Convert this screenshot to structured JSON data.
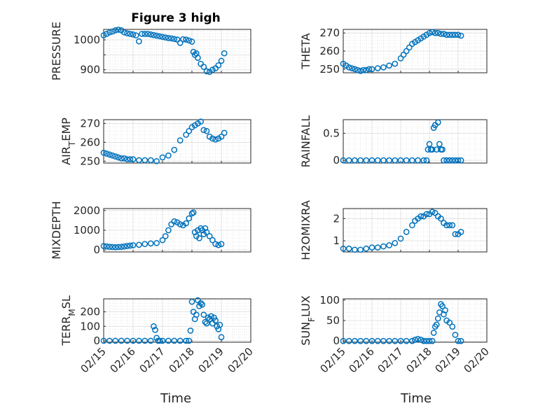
{
  "figure_title": "Figure 3 high",
  "x_ticks": [
    "02/15",
    "02/16",
    "02/17",
    "02/18",
    "02/19",
    "02/20"
  ],
  "marker_color": "#0072BD",
  "chart_data": [
    {
      "type": "scatter",
      "ylabel": "PRESSURE",
      "ylim": [
        890,
        1035
      ],
      "yticks": [
        900,
        950,
        1000
      ],
      "yticklabels": [
        "900",
        "",
        "1000"
      ],
      "x": [
        0,
        0.1,
        0.2,
        0.3,
        0.4,
        0.5,
        0.6,
        0.7,
        0.8,
        0.9,
        1.0,
        1.1,
        1.2,
        1.3,
        1.4,
        1.5,
        1.6,
        1.7,
        1.8,
        1.9,
        2.0,
        2.1,
        2.2,
        2.3,
        2.4,
        2.5,
        2.6,
        2.7,
        2.8,
        2.9,
        3.0,
        3.05,
        3.1,
        3.15,
        3.2,
        3.3,
        3.4,
        3.5,
        3.6,
        3.7,
        3.8,
        3.9,
        4.0,
        4.1
      ],
      "y": [
        1015,
        1020,
        1025,
        1028,
        1032,
        1034,
        1032,
        1025,
        1022,
        1020,
        1018,
        1015,
        995,
        1020,
        1020,
        1020,
        1018,
        1016,
        1014,
        1012,
        1010,
        1008,
        1006,
        1005,
        1003,
        1001,
        990,
        1002,
        1001,
        998,
        994,
        960,
        950,
        955,
        940,
        920,
        910,
        895,
        893,
        900,
        905,
        915,
        930,
        955
      ]
    },
    {
      "type": "scatter",
      "ylabel": "THETA",
      "ylim": [
        248,
        272
      ],
      "yticks": [
        250,
        260,
        270
      ],
      "yticklabels": [
        "250",
        "260",
        "270"
      ],
      "x": [
        0,
        0.1,
        0.2,
        0.3,
        0.4,
        0.5,
        0.6,
        0.7,
        0.8,
        0.9,
        1.0,
        1.2,
        1.4,
        1.6,
        1.8,
        2.0,
        2.1,
        2.2,
        2.3,
        2.4,
        2.5,
        2.6,
        2.7,
        2.8,
        2.9,
        3.0,
        3.1,
        3.2,
        3.3,
        3.4,
        3.5,
        3.6,
        3.7,
        3.8,
        3.9,
        4.0,
        4.1
      ],
      "y": [
        253,
        252,
        251,
        250.5,
        250,
        249.5,
        249,
        249.5,
        249.5,
        250,
        250,
        250.5,
        251,
        252,
        253,
        256,
        258,
        260,
        262,
        264,
        265,
        266,
        267,
        268,
        269,
        270,
        270.5,
        270,
        270,
        269.5,
        269.5,
        269,
        269,
        269,
        269,
        269,
        268.5
      ]
    },
    {
      "type": "scatter",
      "ylabel": "AIR_TEMP",
      "ylim": [
        249,
        272
      ],
      "yticks": [
        250,
        260,
        270
      ],
      "yticklabels": [
        "250",
        "260",
        "270"
      ],
      "x": [
        0,
        0.1,
        0.2,
        0.3,
        0.4,
        0.5,
        0.6,
        0.7,
        0.8,
        0.9,
        1.0,
        1.2,
        1.4,
        1.6,
        1.8,
        2.0,
        2.2,
        2.4,
        2.6,
        2.8,
        2.9,
        3.0,
        3.1,
        3.2,
        3.3,
        3.4,
        3.5,
        3.6,
        3.7,
        3.8,
        3.9,
        4.0,
        4.1
      ],
      "y": [
        254.5,
        254,
        253.5,
        253,
        252.5,
        252,
        251.5,
        251.5,
        251,
        251,
        251,
        250.5,
        250.5,
        250.5,
        250,
        252,
        253,
        256,
        261,
        264,
        266,
        268,
        269,
        270,
        271,
        266.5,
        266,
        263,
        262,
        261.5,
        262,
        263,
        265
      ]
    },
    {
      "type": "scatter",
      "ylabel": "RAINFALL",
      "ylim": [
        -0.05,
        0.75
      ],
      "yticks": [
        0,
        0.5
      ],
      "yticklabels": [
        "0",
        "0.5"
      ],
      "x": [
        0,
        0.2,
        0.4,
        0.6,
        0.8,
        1.0,
        1.2,
        1.4,
        1.6,
        1.8,
        2.0,
        2.2,
        2.4,
        2.6,
        2.8,
        2.9,
        2.95,
        3.0,
        3.05,
        3.1,
        3.15,
        3.2,
        3.25,
        3.3,
        3.35,
        3.4,
        3.45,
        3.5,
        3.6,
        3.7,
        3.8,
        3.9,
        4.0,
        4.1
      ],
      "y": [
        0,
        0,
        0,
        0,
        0,
        0,
        0,
        0,
        0,
        0,
        0,
        0,
        0,
        0,
        0,
        0,
        0.2,
        0.3,
        0.2,
        0.2,
        0.6,
        0.65,
        0.2,
        0.7,
        0.3,
        0.2,
        0.2,
        0,
        0,
        0,
        0,
        0,
        0,
        0
      ]
    },
    {
      "type": "scatter",
      "ylabel": "MIXDEPTH",
      "ylim": [
        -100,
        2100
      ],
      "yticks": [
        0,
        1000,
        2000
      ],
      "yticklabels": [
        "0",
        "1000",
        "2000"
      ],
      "x": [
        0,
        0.1,
        0.2,
        0.3,
        0.4,
        0.5,
        0.6,
        0.7,
        0.8,
        0.9,
        1.0,
        1.2,
        1.4,
        1.6,
        1.8,
        2.0,
        2.1,
        2.2,
        2.3,
        2.4,
        2.5,
        2.6,
        2.7,
        2.8,
        2.9,
        3.0,
        3.05,
        3.1,
        3.15,
        3.2,
        3.25,
        3.3,
        3.35,
        3.4,
        3.45,
        3.5,
        3.6,
        3.7,
        3.8,
        3.9,
        4.0
      ],
      "y": [
        200,
        180,
        160,
        150,
        140,
        150,
        160,
        180,
        200,
        220,
        240,
        260,
        300,
        330,
        350,
        500,
        700,
        1000,
        1300,
        1450,
        1400,
        1300,
        1250,
        1350,
        1600,
        1850,
        1900,
        900,
        700,
        1000,
        600,
        1100,
        1000,
        800,
        1100,
        900,
        700,
        500,
        300,
        250,
        300
      ]
    },
    {
      "type": "scatter",
      "ylabel": "H2OMIXRA",
      "ylim": [
        0.5,
        2.45
      ],
      "yticks": [
        1,
        2
      ],
      "yticklabels": [
        "1",
        "2"
      ],
      "x": [
        0,
        0.2,
        0.4,
        0.6,
        0.8,
        1.0,
        1.2,
        1.4,
        1.6,
        1.8,
        2.0,
        2.2,
        2.4,
        2.5,
        2.6,
        2.7,
        2.8,
        2.9,
        3.0,
        3.1,
        3.2,
        3.3,
        3.4,
        3.5,
        3.6,
        3.7,
        3.8,
        3.9,
        4.0,
        4.1
      ],
      "y": [
        0.65,
        0.65,
        0.6,
        0.6,
        0.65,
        0.7,
        0.7,
        0.75,
        0.8,
        0.9,
        1.1,
        1.4,
        1.7,
        1.9,
        2.0,
        2.1,
        2.1,
        2.2,
        2.2,
        2.3,
        2.25,
        2.1,
        2.0,
        1.8,
        1.7,
        1.7,
        1.7,
        1.3,
        1.3,
        1.4
      ]
    },
    {
      "type": "scatter",
      "ylabel": "TERR_MSL",
      "ylim": [
        -10,
        290
      ],
      "yticks": [
        0,
        100,
        200
      ],
      "yticklabels": [
        "0",
        "100",
        "200"
      ],
      "x": [
        0,
        0.2,
        0.4,
        0.6,
        0.8,
        1.0,
        1.2,
        1.4,
        1.6,
        1.7,
        1.75,
        1.8,
        1.85,
        1.9,
        2.0,
        2.2,
        2.4,
        2.6,
        2.8,
        2.9,
        2.95,
        3.0,
        3.05,
        3.1,
        3.15,
        3.2,
        3.25,
        3.3,
        3.35,
        3.4,
        3.45,
        3.5,
        3.55,
        3.6,
        3.65,
        3.7,
        3.75,
        3.8,
        3.85,
        3.9,
        3.95,
        4.0
      ],
      "y": [
        0,
        0,
        0,
        0,
        0,
        0,
        0,
        0,
        0,
        100,
        75,
        20,
        0,
        0,
        0,
        0,
        0,
        0,
        0,
        0,
        70,
        270,
        200,
        150,
        180,
        280,
        240,
        260,
        250,
        180,
        130,
        120,
        160,
        150,
        170,
        120,
        160,
        140,
        100,
        80,
        110,
        25
      ]
    },
    {
      "type": "scatter",
      "ylabel": "SUN_FLUX",
      "ylim": [
        -3,
        103
      ],
      "yticks": [
        0,
        50,
        100
      ],
      "yticklabels": [
        "0",
        "50",
        "100"
      ],
      "x": [
        0,
        0.2,
        0.4,
        0.6,
        0.8,
        1.0,
        1.2,
        1.4,
        1.6,
        1.8,
        2.0,
        2.2,
        2.4,
        2.5,
        2.6,
        2.7,
        2.8,
        2.9,
        3.0,
        3.1,
        3.15,
        3.2,
        3.25,
        3.3,
        3.35,
        3.4,
        3.45,
        3.5,
        3.55,
        3.6,
        3.7,
        3.8,
        3.9,
        4.0,
        4.1
      ],
      "y": [
        0,
        0,
        0,
        0,
        0,
        0,
        0,
        0,
        0,
        0,
        0,
        0,
        0,
        3,
        5,
        3,
        0,
        0,
        0,
        0,
        20,
        35,
        40,
        55,
        70,
        90,
        85,
        65,
        75,
        50,
        45,
        35,
        15,
        0,
        0
      ]
    }
  ],
  "x_axis_label": "Time"
}
